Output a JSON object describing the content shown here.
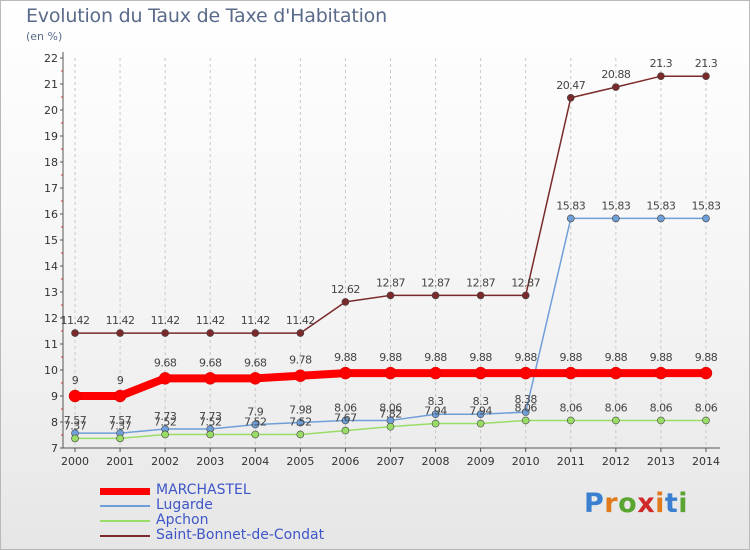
{
  "title": "Evolution du Taux de Taxe d'Habitation",
  "subtitle": "(en %)",
  "brand": "Proxiti",
  "chart_data": {
    "type": "line",
    "title": "Evolution du Taux de Taxe d'Habitation",
    "ylabel": "(en %)",
    "x": [
      2000,
      2001,
      2002,
      2003,
      2004,
      2005,
      2006,
      2007,
      2008,
      2009,
      2010,
      2011,
      2012,
      2013,
      2014
    ],
    "ylim": [
      7,
      22
    ],
    "yticks": [
      7,
      8,
      9,
      10,
      11,
      12,
      13,
      14,
      15,
      16,
      17,
      18,
      19,
      20,
      21,
      22
    ],
    "ytick_labels": [
      "7",
      "8",
      "9",
      "10",
      "11",
      "12",
      "13",
      "14",
      "15",
      "16",
      "17",
      "18",
      "19",
      "20",
      "21",
      "22"
    ],
    "grid": "vertical-dashed",
    "legend_position": "bottom-left",
    "series": [
      {
        "name": "MARCHASTEL",
        "color": "#ff0000",
        "values": [
          9,
          9,
          9.68,
          9.68,
          9.68,
          9.78,
          9.88,
          9.88,
          9.88,
          9.88,
          9.88,
          9.88,
          9.88,
          9.88,
          9.88
        ],
        "labels": [
          "9",
          "9",
          "9.68",
          "9.68",
          "9.68",
          "9.78",
          "9.88",
          "9.88",
          "9.88",
          "9.88",
          "9.88",
          "9.88",
          "9.88",
          "9.88",
          "9.88"
        ]
      },
      {
        "name": "Lugarde",
        "color": "#6f9fd8",
        "values": [
          7.57,
          7.57,
          7.73,
          7.73,
          7.9,
          7.98,
          8.06,
          8.06,
          8.3,
          8.3,
          8.38,
          15.83,
          15.83,
          15.83,
          15.83
        ],
        "labels": [
          "7.57",
          "7.57",
          "7.73",
          "7.73",
          "7.9",
          "7.98",
          "8.06",
          "8.06",
          "8.3",
          "8.3",
          "8.38",
          "15.83",
          "15.83",
          "15.83",
          "15.83"
        ]
      },
      {
        "name": "Apchon",
        "color": "#99dd66",
        "values": [
          7.37,
          7.37,
          7.52,
          7.52,
          7.52,
          7.52,
          7.67,
          7.82,
          7.94,
          7.94,
          8.06,
          8.06,
          8.06,
          8.06,
          8.06
        ],
        "labels": [
          "7.37",
          "7.37",
          "7.52",
          "7.52",
          "7.52",
          "7.52",
          "7.67",
          "7.82",
          "7.94",
          "7.94",
          "8.06",
          "8.06",
          "8.06",
          "8.06",
          "8.06"
        ]
      },
      {
        "name": "Saint-Bonnet-de-Condat",
        "color": "#7a2a2a",
        "values": [
          11.42,
          11.42,
          11.42,
          11.42,
          11.42,
          11.42,
          12.62,
          12.87,
          12.87,
          12.87,
          12.87,
          20.47,
          20.88,
          21.3,
          21.3
        ],
        "labels": [
          "11.42",
          "11.42",
          "11.42",
          "11.42",
          "11.42",
          "11.42",
          "12.62",
          "12.87",
          "12.87",
          "12.87",
          "12.87",
          "20.47",
          "20.88",
          "21.3",
          "21.3"
        ]
      }
    ]
  }
}
